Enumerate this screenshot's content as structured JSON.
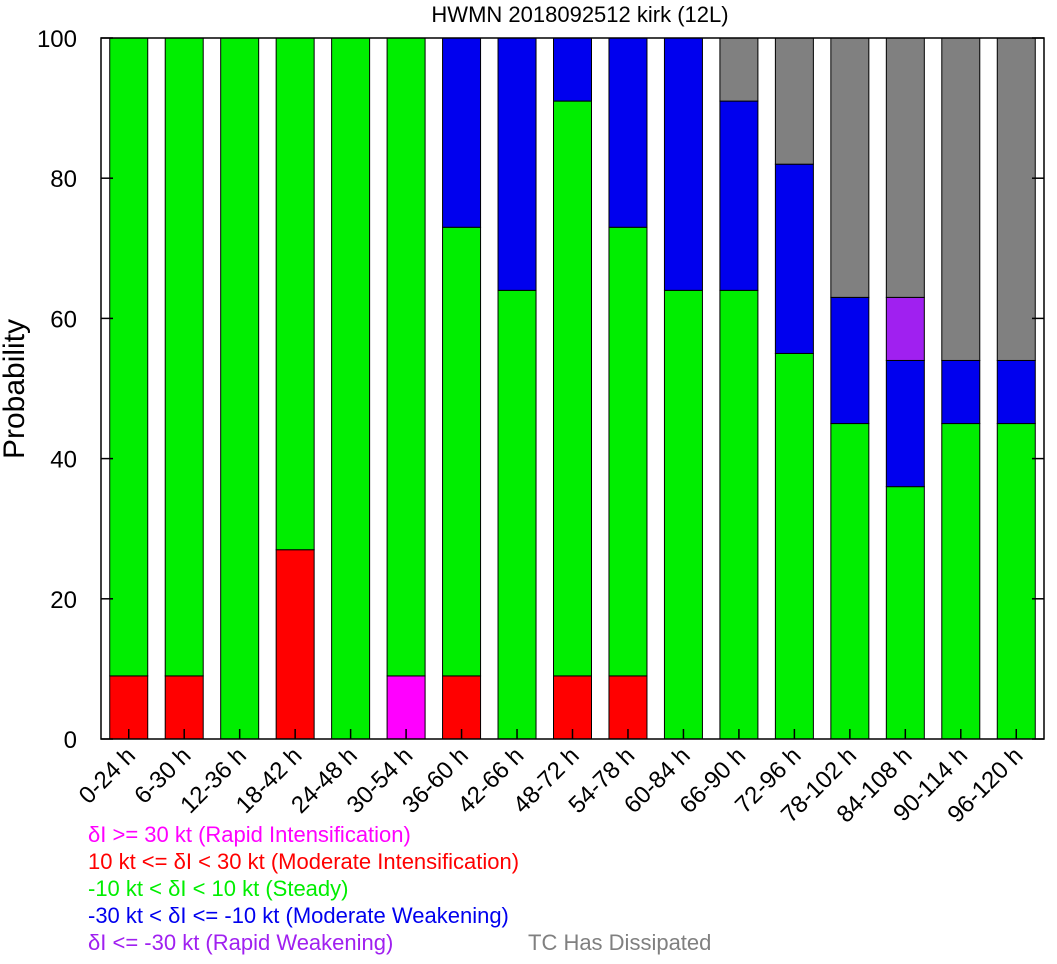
{
  "chart_data": {
    "type": "bar",
    "stacked": true,
    "title": "HWMN 2018092512 kirk (12L)",
    "xlabel": "",
    "ylabel": "Probability",
    "ylim": [
      0,
      100
    ],
    "yticks": [
      0,
      20,
      40,
      60,
      80,
      100
    ],
    "grid": false,
    "legend_position": "bottom-left",
    "categories": [
      "0-24 h",
      "6-30 h",
      "12-36 h",
      "18-42 h",
      "24-48 h",
      "30-54 h",
      "36-60 h",
      "42-66 h",
      "48-72 h",
      "54-78 h",
      "60-84 h",
      "66-90 h",
      "72-96 h",
      "78-102 h",
      "84-108 h",
      "90-114 h",
      "96-120 h"
    ],
    "series": [
      {
        "name": "δI >= 30 kt (Rapid Intensification)",
        "color": "#ff00ff",
        "values": [
          0,
          0,
          0,
          0,
          0,
          9,
          0,
          0,
          0,
          0,
          0,
          0,
          0,
          0,
          0,
          0,
          0
        ]
      },
      {
        "name": "10 kt <= δI < 30 kt (Moderate Intensification)",
        "color": "#ff0000",
        "values": [
          9,
          9,
          0,
          27,
          0,
          0,
          9,
          0,
          9,
          9,
          0,
          0,
          0,
          0,
          0,
          0,
          0
        ]
      },
      {
        "name": "-10 kt < δI < 10 kt (Steady)",
        "color": "#00ee00",
        "values": [
          91,
          91,
          100,
          73,
          100,
          91,
          64,
          64,
          82,
          64,
          64,
          64,
          55,
          45,
          36,
          45,
          45
        ]
      },
      {
        "name": "-30 kt < δI <= -10 kt (Moderate Weakening)",
        "color": "#0000ee",
        "values": [
          0,
          0,
          0,
          0,
          0,
          0,
          27,
          36,
          9,
          27,
          36,
          27,
          27,
          18,
          18,
          9,
          9
        ]
      },
      {
        "name": "δI <= -30 kt (Rapid Weakening)",
        "color": "#a020f0",
        "values": [
          0,
          0,
          0,
          0,
          0,
          0,
          0,
          0,
          0,
          0,
          0,
          0,
          0,
          0,
          9,
          0,
          0
        ]
      },
      {
        "name": "TC Has Dissipated",
        "color": "#808080",
        "values": [
          0,
          0,
          0,
          0,
          0,
          0,
          0,
          0,
          0,
          0,
          0,
          9,
          18,
          37,
          37,
          46,
          46
        ]
      }
    ]
  }
}
